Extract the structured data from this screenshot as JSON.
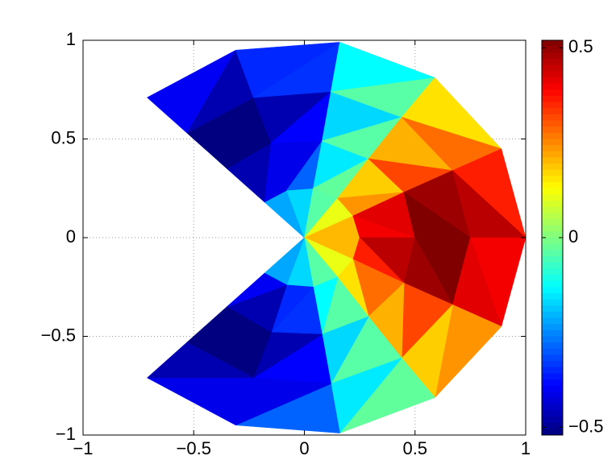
{
  "chart_data": {
    "type": "trimesh",
    "colormap": "jet",
    "grid": true,
    "xlim": [
      -1,
      1
    ],
    "ylim": [
      -1,
      1
    ],
    "xticks": [
      {
        "value": -1,
        "label": "−1"
      },
      {
        "value": -0.5,
        "label": "−0.5"
      },
      0,
      0.5,
      1
    ],
    "yticks": [
      {
        "value": -1,
        "label": "−1"
      },
      {
        "value": -0.5,
        "label": "−0.5"
      },
      0,
      0.5,
      1
    ],
    "clim": [
      -0.52,
      0.52
    ],
    "cticks": [
      {
        "value": -0.5,
        "label": "−0.5"
      },
      0,
      0.5
    ],
    "x": [
      [
        0
      ],
      [
        -0.18,
        -0.08,
        0.04,
        0.15,
        0.22,
        0.25,
        0.22,
        0.15,
        0.04,
        -0.08,
        -0.18
      ],
      [
        -0.35,
        -0.15,
        0.08,
        0.29,
        0.45,
        0.5,
        0.45,
        0.29,
        0.08,
        -0.15,
        -0.35
      ],
      [
        -0.53,
        -0.23,
        0.12,
        0.44,
        0.67,
        0.75,
        0.67,
        0.44,
        0.12,
        -0.23,
        -0.53
      ],
      [
        -0.71,
        -0.31,
        0.16,
        0.59,
        0.89,
        1,
        0.89,
        0.59,
        0.16,
        -0.31,
        -0.71
      ]
    ],
    "y": [
      [
        0
      ],
      [
        0.18,
        0.24,
        0.25,
        0.2,
        0.11,
        0,
        -0.11,
        -0.2,
        -0.25,
        -0.24,
        -0.18
      ],
      [
        0.35,
        0.48,
        0.49,
        0.4,
        0.23,
        0,
        -0.23,
        -0.4,
        -0.49,
        -0.48,
        -0.35
      ],
      [
        0.53,
        0.71,
        0.74,
        0.61,
        0.34,
        0,
        -0.34,
        -0.61,
        -0.74,
        -0.71,
        -0.53
      ],
      [
        0.71,
        0.95,
        0.99,
        0.81,
        0.45,
        0,
        -0.45,
        -0.81,
        -0.99,
        -0.95,
        -0.71
      ]
    ],
    "values": [
      [
        -0.22,
        -0.17,
        -0.04,
        0.11,
        0.2,
        0.2,
        0.11,
        -0.04,
        -0.17,
        -0.22
      ],
      [
        -0.47,
        -0.41,
        -0.41,
        -0.29,
        -0.15,
        -0.03,
        0.18,
        0.24,
        0.42,
        0.4,
        0.46,
        0.36,
        0.28,
        0.16,
        -0.04,
        -0.13,
        -0.34,
        -0.35,
        -0.47,
        -0.4
      ],
      [
        -0.54,
        -0.55,
        -0.47,
        -0.39,
        -0.17,
        -0.04,
        0.21,
        0.32,
        0.49,
        0.53,
        0.53,
        0.49,
        0.32,
        0.21,
        -0.04,
        -0.17,
        -0.39,
        -0.47,
        -0.55,
        -0.54
      ],
      [
        -0.4,
        -0.47,
        -0.35,
        -0.34,
        -0.13,
        -0.04,
        0.16,
        0.28,
        0.36,
        0.46,
        0.4,
        0.42,
        0.24,
        0.18,
        -0.03,
        -0.15,
        -0.29,
        -0.41,
        -0.41,
        -0.47
      ]
    ]
  }
}
